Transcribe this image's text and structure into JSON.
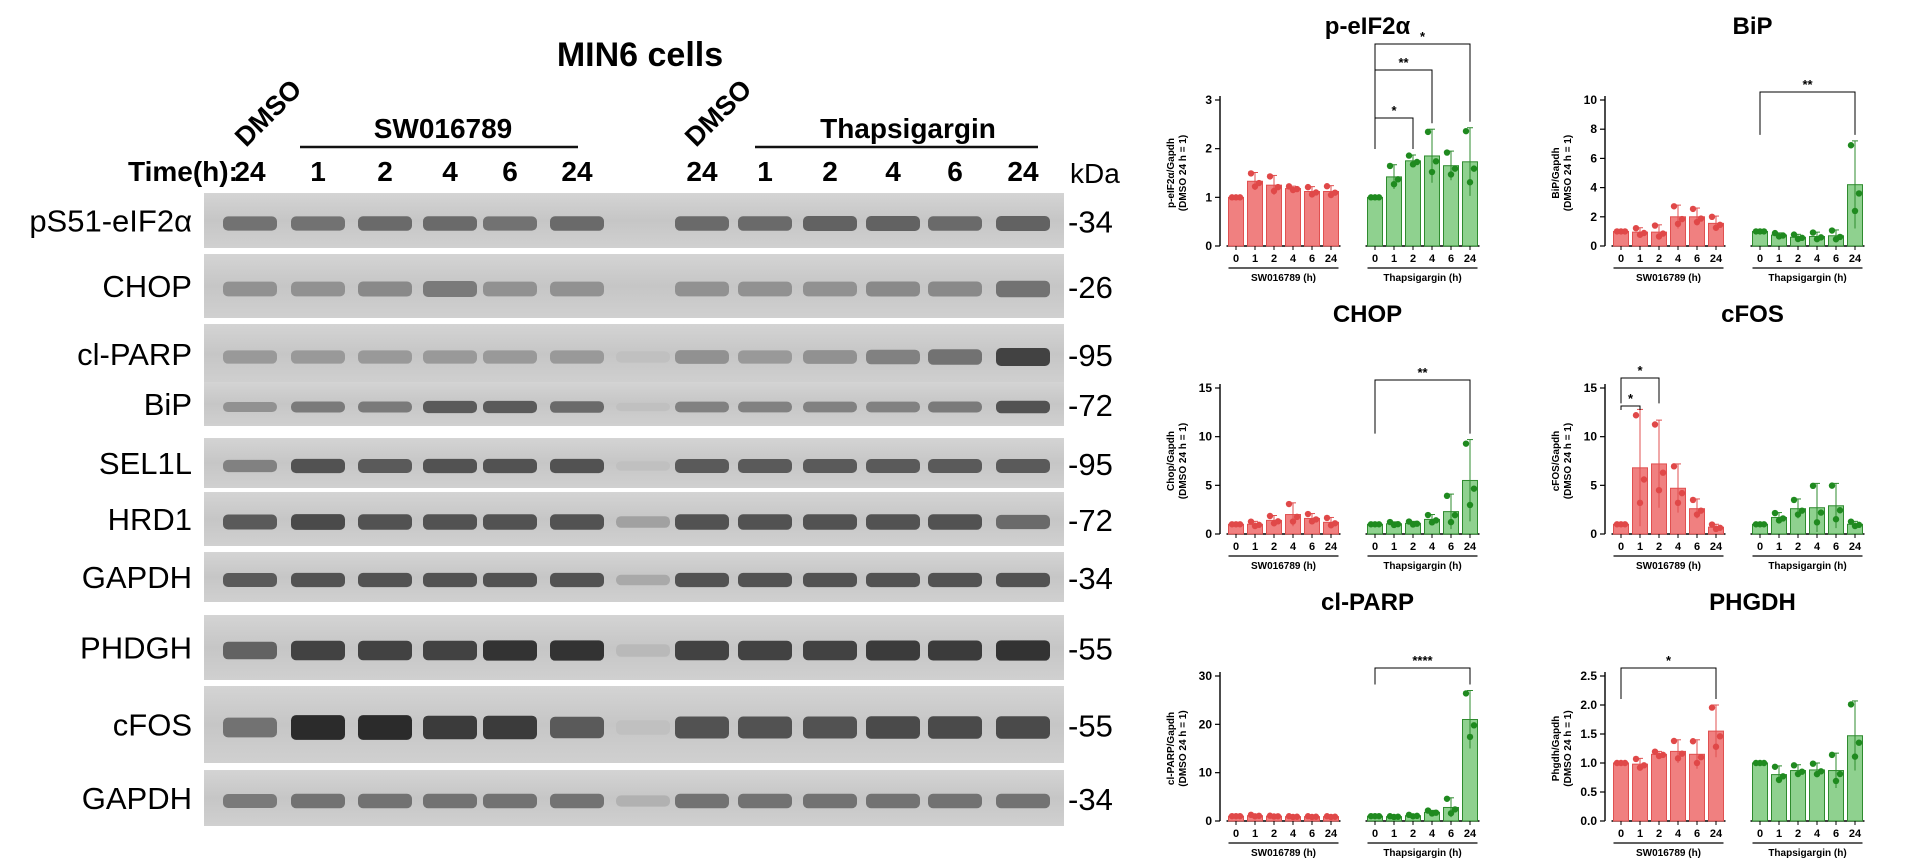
{
  "blot": {
    "title": "MIN6 cells",
    "group_dmso_1": "DMSO",
    "group_sw": "SW016789",
    "group_dmso_2": "DMSO",
    "group_tg": "Thapsigargin",
    "time_label": "Time(h):",
    "times_left": [
      "24",
      "1",
      "2",
      "4",
      "6",
      "24"
    ],
    "times_right": [
      "24",
      "1",
      "2",
      "4",
      "6",
      "24"
    ],
    "kda_label": "kDa",
    "rows": [
      {
        "name": "pS51-eIF2α",
        "kda": "-34"
      },
      {
        "name": "CHOP",
        "kda": "-26"
      },
      {
        "name": "cl-PARP",
        "kda": "-95"
      },
      {
        "name": "BiP",
        "kda": "-72"
      },
      {
        "name": "SEL1L",
        "kda": "-95"
      },
      {
        "name": "HRD1",
        "kda": "-72"
      },
      {
        "name": "GAPDH",
        "kda": "-34"
      },
      {
        "name": "PHDGH",
        "kda": "-55"
      },
      {
        "name": "cFOS",
        "kda": "-55"
      },
      {
        "name": "GAPDH",
        "kda": "-34"
      }
    ]
  },
  "colors": {
    "sw": "#f08080",
    "sw_edge": "#e05050",
    "tg": "#8fd18f",
    "tg_edge": "#2e8b2e",
    "sw_dot": "#e04848",
    "tg_dot": "#1f8a1f"
  },
  "chart_data": [
    {
      "type": "bar",
      "title": "p-eIF2α",
      "ylabel": "p-eIF2α/Gapdh\n(DMSO 24 h = 1)",
      "ylim": [
        0,
        3
      ],
      "yticks": [
        "0",
        "1",
        "2",
        "3"
      ],
      "categories": [
        "0",
        "1",
        "2",
        "4",
        "6",
        "24"
      ],
      "groups": [
        "SW016789 (h)",
        "Thapsigargin (h)"
      ],
      "series": [
        {
          "name": "SW016789 (h)",
          "values": [
            1.0,
            1.33,
            1.25,
            1.18,
            1.12,
            1.12
          ],
          "err": [
            0,
            0.18,
            0.2,
            0.05,
            0.1,
            0.12
          ]
        },
        {
          "name": "Thapsigargin (h)",
          "values": [
            1.0,
            1.42,
            1.75,
            1.85,
            1.65,
            1.73
          ],
          "err": [
            0,
            0.25,
            0.12,
            0.55,
            0.3,
            0.7
          ]
        }
      ],
      "significance": [
        {
          "from": 6,
          "to": 8,
          "label": "*"
        },
        {
          "from": 6,
          "to": 9,
          "label": "**"
        },
        {
          "from": 6,
          "to": 11,
          "label": "*"
        }
      ]
    },
    {
      "type": "bar",
      "title": "BiP",
      "ylabel": "BiP/Gapdh\n(DMSO 24 h = 1)",
      "ylim": [
        0,
        10
      ],
      "yticks": [
        "0",
        "2",
        "4",
        "6",
        "8",
        "10"
      ],
      "categories": [
        "0",
        "1",
        "2",
        "4",
        "6",
        "24"
      ],
      "groups": [
        "SW016789 (h)",
        "Thapsigargin (h)"
      ],
      "series": [
        {
          "name": "SW016789 (h)",
          "values": [
            1.0,
            0.95,
            0.95,
            2.0,
            2.0,
            1.55
          ],
          "err": [
            0,
            0.3,
            0.5,
            0.8,
            0.6,
            0.5
          ]
        },
        {
          "name": "Thapsigargin (h)",
          "values": [
            1.0,
            0.75,
            0.6,
            0.65,
            0.7,
            4.2
          ],
          "err": [
            0,
            0.15,
            0.2,
            0.3,
            0.4,
            3.0
          ]
        }
      ],
      "significance": [
        {
          "from": 6,
          "to": 11,
          "label": "**"
        }
      ]
    },
    {
      "type": "bar",
      "title": "CHOP",
      "ylabel": "Chop/Gapdh\n(DMSO 24 h = 1)",
      "ylim": [
        0,
        15
      ],
      "yticks": [
        "0",
        "5",
        "10",
        "15"
      ],
      "categories": [
        "0",
        "1",
        "2",
        "4",
        "6",
        "24"
      ],
      "groups": [
        "SW016789 (h)",
        "Thapsigargin (h)"
      ],
      "series": [
        {
          "name": "SW016789 (h)",
          "values": [
            1.0,
            1.0,
            1.4,
            2.0,
            1.6,
            1.2
          ],
          "err": [
            0,
            0.3,
            0.5,
            1.2,
            0.5,
            0.5
          ]
        },
        {
          "name": "Thapsigargin (h)",
          "values": [
            1.0,
            1.05,
            1.1,
            1.5,
            2.3,
            5.5
          ],
          "err": [
            0,
            0.2,
            0.2,
            0.5,
            1.8,
            4.2
          ]
        }
      ],
      "significance": [
        {
          "from": 6,
          "to": 11,
          "label": "**"
        }
      ]
    },
    {
      "type": "bar",
      "title": "cFOS",
      "ylabel": "cFOS/Gapdh\n(DMSO 24 h = 1)",
      "ylim": [
        0,
        15
      ],
      "yticks": [
        "0",
        "5",
        "10",
        "15"
      ],
      "categories": [
        "0",
        "1",
        "2",
        "4",
        "6",
        "24"
      ],
      "groups": [
        "SW016789 (h)",
        "Thapsigargin (h)"
      ],
      "series": [
        {
          "name": "SW016789 (h)",
          "values": [
            1.0,
            6.8,
            7.2,
            4.7,
            2.6,
            0.7
          ],
          "err": [
            0,
            6.0,
            4.5,
            2.5,
            1.0,
            0.3
          ]
        },
        {
          "name": "Thapsigargin (h)",
          "values": [
            1.0,
            1.7,
            2.6,
            2.7,
            2.9,
            1.0
          ],
          "err": [
            0,
            0.5,
            1.0,
            2.5,
            2.3,
            0.3
          ]
        }
      ],
      "significance": [
        {
          "from": 0,
          "to": 1,
          "label": "*"
        },
        {
          "from": 0,
          "to": 2,
          "label": "*"
        }
      ]
    },
    {
      "type": "bar",
      "title": "cl-PARP",
      "ylabel": "cl-PARP/Gapdh\n(DMSO 24 h = 1)",
      "ylim": [
        0,
        30
      ],
      "yticks": [
        "0",
        "10",
        "20",
        "30"
      ],
      "categories": [
        "0",
        "1",
        "2",
        "4",
        "6",
        "24"
      ],
      "groups": [
        "SW016789 (h)",
        "Thapsigargin (h)"
      ],
      "series": [
        {
          "name": "SW016789 (h)",
          "values": [
            1.0,
            1.1,
            1.0,
            0.9,
            0.9,
            0.9
          ],
          "err": [
            0,
            0.2,
            0.1,
            0.1,
            0.1,
            0.1
          ]
        },
        {
          "name": "Thapsigargin (h)",
          "values": [
            1.0,
            0.9,
            1.1,
            1.8,
            2.8,
            21.0
          ],
          "err": [
            0,
            0.1,
            0.2,
            0.4,
            2.0,
            6.0
          ]
        }
      ],
      "significance": [
        {
          "from": 6,
          "to": 11,
          "label": "****"
        }
      ]
    },
    {
      "type": "bar",
      "title": "PHGDH",
      "ylabel": "Phgdh/Gapdh\n(DMSO 24 h = 1)",
      "ylim": [
        0,
        2.5
      ],
      "yticks": [
        "0.0",
        "0.5",
        "1.0",
        "1.5",
        "2.0",
        "2.5"
      ],
      "categories": [
        "0",
        "1",
        "2",
        "4",
        "6",
        "24"
      ],
      "groups": [
        "SW016789 (h)",
        "Thapsigargin (h)"
      ],
      "series": [
        {
          "name": "SW016789 (h)",
          "values": [
            1.0,
            0.98,
            1.15,
            1.2,
            1.15,
            1.55
          ],
          "err": [
            0,
            0.1,
            0.05,
            0.2,
            0.25,
            0.45
          ]
        },
        {
          "name": "Thapsigargin (h)",
          "values": [
            1.0,
            0.8,
            0.87,
            0.88,
            0.87,
            1.47
          ],
          "err": [
            0,
            0.15,
            0.1,
            0.12,
            0.3,
            0.6
          ]
        }
      ],
      "significance": [
        {
          "from": 0,
          "to": 5,
          "label": "*"
        }
      ]
    }
  ]
}
